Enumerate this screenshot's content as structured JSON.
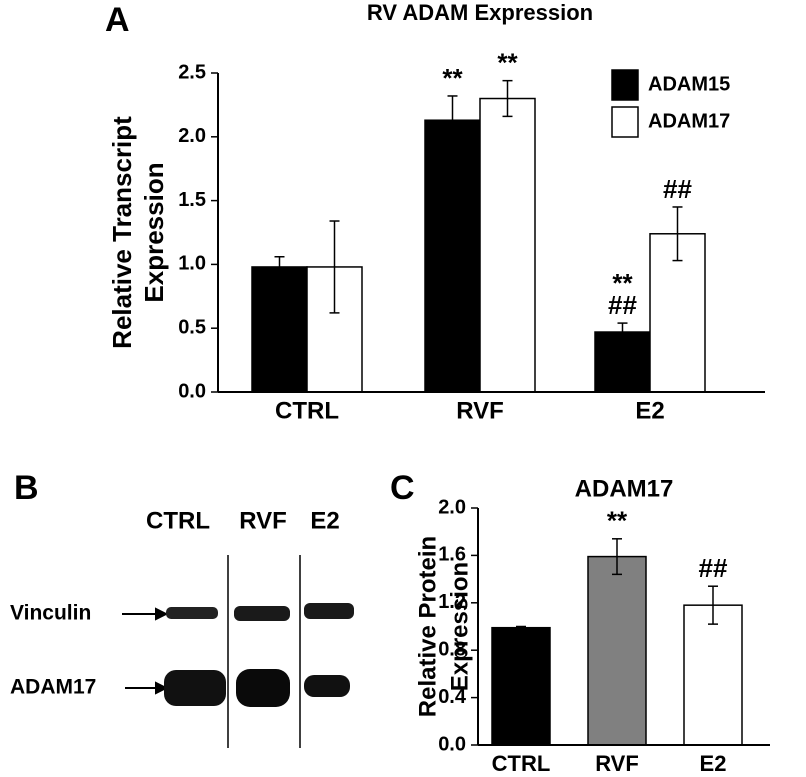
{
  "chart_data": [
    {
      "type": "bar",
      "panel": "A",
      "title": "RV ADAM Expression",
      "ylabel": [
        "Relative Transcript",
        "Expression"
      ],
      "categories": [
        "CTRL",
        "RVF",
        "E2"
      ],
      "series": [
        {
          "name": "ADAM15",
          "color": "#000000",
          "values": [
            0.98,
            2.13,
            0.47
          ],
          "errors": [
            0.08,
            0.19,
            0.07
          ],
          "annotations": [
            [],
            [
              "**"
            ],
            [
              "**",
              "##"
            ]
          ]
        },
        {
          "name": "ADAM17",
          "color": "#ffffff",
          "values": [
            0.98,
            2.3,
            1.24
          ],
          "errors": [
            0.36,
            0.14,
            0.21
          ],
          "annotations": [
            [],
            [
              "**"
            ],
            [
              "##"
            ]
          ]
        }
      ],
      "ylim": [
        0,
        2.5
      ],
      "yticks": [
        {
          "value": 0,
          "label": "0.0"
        },
        {
          "value": 0.5,
          "label": "0.5"
        },
        {
          "value": 1,
          "label": "1.0"
        },
        {
          "value": 1.5,
          "label": "1.5"
        },
        {
          "value": 2,
          "label": "2.0"
        },
        {
          "value": 2.5,
          "label": "2.5"
        }
      ],
      "legend": "upper right"
    },
    {
      "type": "bar",
      "panel": "C",
      "title": "ADAM17",
      "ylabel": [
        "Relative Protein",
        "Expression"
      ],
      "categories": [
        "CTRL",
        "RVF",
        "E2"
      ],
      "colors": [
        "#000000",
        "#808080",
        "#ffffff"
      ],
      "values": [
        0.99,
        1.59,
        1.18
      ],
      "errors": [
        0.01,
        0.15,
        0.16
      ],
      "annotations": [
        [],
        [
          "**"
        ],
        [
          "##"
        ]
      ],
      "ylim": [
        0,
        2.0
      ],
      "yticks": [
        {
          "value": 0,
          "label": "0.0"
        },
        {
          "value": 0.4,
          "label": "0.4"
        },
        {
          "value": 0.8,
          "label": "0.8"
        },
        {
          "value": 1.2,
          "label": "1.2"
        },
        {
          "value": 1.6,
          "label": "1.6"
        },
        {
          "value": 2.0,
          "label": "2.0"
        }
      ]
    }
  ],
  "blot": {
    "panel": "B",
    "lanes": [
      "CTRL",
      "RVF",
      "E2"
    ],
    "bands": [
      "Vinculin",
      "ADAM17"
    ]
  }
}
